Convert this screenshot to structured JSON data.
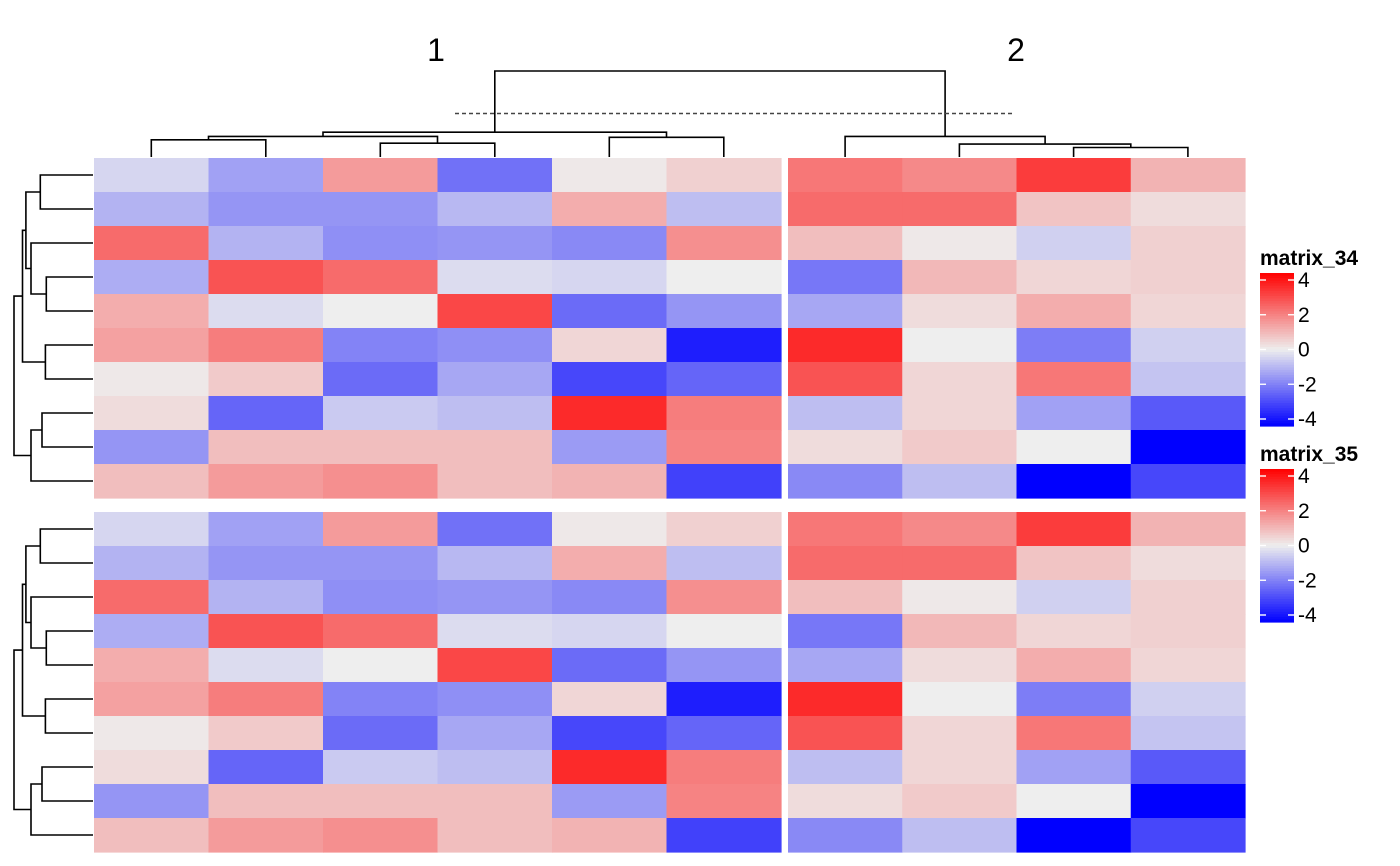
{
  "chart_data": {
    "type": "heatmap",
    "column_split_labels": [
      "1",
      "2"
    ],
    "color_scale": {
      "domain": [
        -4,
        0,
        4
      ],
      "colors": [
        "#0000ff",
        "#eeeeee",
        "#ff0000"
      ]
    },
    "heatmaps": [
      {
        "name": "matrix_34",
        "legend": {
          "title": "matrix_34",
          "ticks": [
            "4",
            "2",
            "0",
            "-2",
            "-4"
          ]
        },
        "values": [
          [
            -0.4,
            -1.3,
            1.4,
            -2.1,
            0.1,
            0.5,
            2.0,
            1.7,
            3.0,
            1.0
          ],
          [
            -1.0,
            -1.5,
            -1.5,
            -0.9,
            1.1,
            -0.8,
            2.2,
            2.2,
            0.7,
            0.3
          ],
          [
            2.2,
            -1.0,
            -1.6,
            -1.5,
            -1.7,
            1.6,
            0.8,
            0.1,
            -0.5,
            0.5
          ],
          [
            -1.1,
            2.6,
            2.2,
            -0.3,
            -0.4,
            0.0,
            -2.0,
            0.9,
            0.4,
            0.5
          ],
          [
            1.1,
            -0.3,
            0.0,
            2.8,
            -2.2,
            -1.5,
            -1.2,
            0.3,
            1.1,
            0.4
          ],
          [
            1.3,
            1.9,
            -1.8,
            -1.6,
            0.4,
            -3.5,
            3.3,
            0.0,
            -1.9,
            -0.5
          ],
          [
            0.1,
            0.6,
            -2.2,
            -1.2,
            -2.8,
            -2.3,
            2.6,
            0.4,
            2.0,
            -0.7
          ],
          [
            0.3,
            -2.3,
            -0.6,
            -0.8,
            3.3,
            1.9,
            -0.8,
            0.4,
            -1.3,
            -2.5
          ],
          [
            -1.5,
            0.8,
            0.8,
            0.8,
            -1.4,
            1.8,
            0.3,
            0.6,
            0.0,
            -4.0
          ],
          [
            0.8,
            1.4,
            1.6,
            0.8,
            1.0,
            -2.9,
            -1.7,
            -0.8,
            -4.0,
            -2.8
          ]
        ]
      },
      {
        "name": "matrix_35",
        "legend": {
          "title": "matrix_35",
          "ticks": [
            "4",
            "2",
            "0",
            "-2",
            "-4"
          ]
        },
        "values": [
          [
            -0.4,
            -1.3,
            1.4,
            -2.1,
            0.1,
            0.5,
            2.0,
            1.7,
            3.0,
            1.0
          ],
          [
            -1.0,
            -1.5,
            -1.5,
            -0.9,
            1.1,
            -0.8,
            2.2,
            2.2,
            0.7,
            0.3
          ],
          [
            2.2,
            -1.0,
            -1.6,
            -1.5,
            -1.7,
            1.6,
            0.8,
            0.1,
            -0.5,
            0.5
          ],
          [
            -1.1,
            2.6,
            2.2,
            -0.3,
            -0.4,
            0.0,
            -2.0,
            0.9,
            0.4,
            0.5
          ],
          [
            1.1,
            -0.3,
            0.0,
            2.8,
            -2.2,
            -1.5,
            -1.2,
            0.3,
            1.1,
            0.4
          ],
          [
            1.3,
            1.9,
            -1.8,
            -1.6,
            0.4,
            -3.5,
            3.3,
            0.0,
            -1.9,
            -0.5
          ],
          [
            0.1,
            0.6,
            -2.2,
            -1.2,
            -2.8,
            -2.3,
            2.6,
            0.4,
            2.0,
            -0.7
          ],
          [
            0.3,
            -2.3,
            -0.6,
            -0.8,
            3.3,
            1.9,
            -0.8,
            0.4,
            -1.3,
            -2.5
          ],
          [
            -1.5,
            0.8,
            0.8,
            0.8,
            -1.4,
            1.8,
            0.3,
            0.6,
            0.0,
            -4.0
          ],
          [
            0.8,
            1.4,
            1.6,
            0.8,
            1.0,
            -2.9,
            -1.7,
            -0.8,
            -4.0,
            -2.8
          ]
        ]
      }
    ],
    "column_dendrogram": {
      "leaf_order": [
        1,
        2,
        3,
        4,
        5,
        6,
        7,
        8,
        9,
        10
      ],
      "merges": [
        [
          -3,
          -4,
          0.73
        ],
        [
          -1,
          -2,
          0.77
        ],
        [
          -5,
          -6,
          0.8
        ],
        [
          1,
          2,
          0.81
        ],
        [
          4,
          3,
          0.86
        ],
        [
          -9,
          -10,
          0.68
        ],
        [
          -8,
          6,
          0.72
        ],
        [
          -7,
          7,
          0.81
        ],
        [
          5,
          8,
          1.58
        ]
      ],
      "cut_height": 1.08
    },
    "row_dendrogram": {
      "leaf_order": [
        1,
        2,
        3,
        4,
        5,
        6,
        7,
        8,
        9,
        10
      ],
      "merges": [
        [
          -1,
          -2,
          0.62
        ],
        [
          -4,
          -5,
          0.55
        ],
        [
          -3,
          2,
          0.73
        ],
        [
          1,
          3,
          0.79
        ],
        [
          -6,
          -7,
          0.56
        ],
        [
          4,
          5,
          0.83
        ],
        [
          -8,
          -9,
          0.6
        ],
        [
          -10,
          7,
          0.73
        ],
        [
          8,
          6,
          0.93
        ]
      ]
    }
  }
}
